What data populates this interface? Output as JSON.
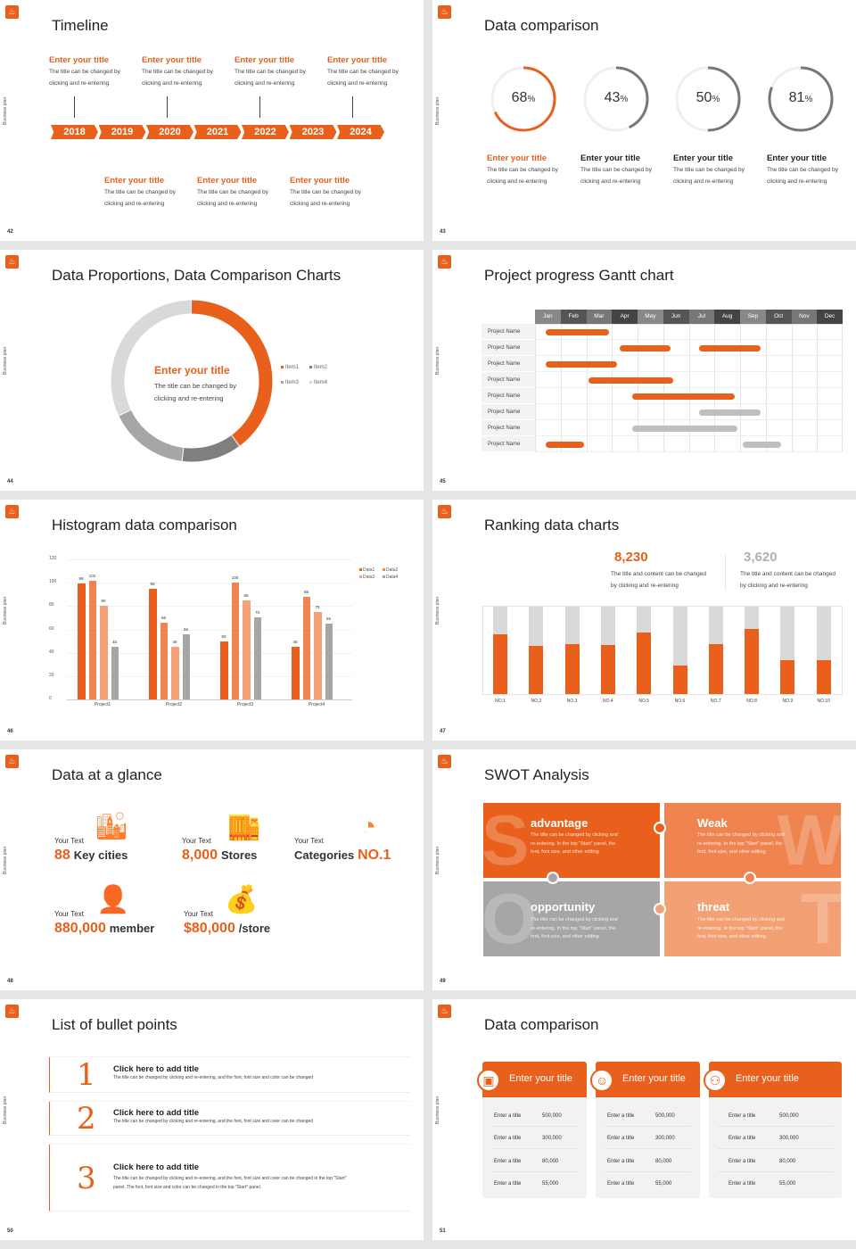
{
  "common": {
    "side_label": "Business plan",
    "logo_icon": "lantern-icon",
    "colors": {
      "orange": "#e8601c",
      "orange2": "#ee7f45",
      "orange3": "#f3a27a",
      "gray": "#a5a5a5",
      "lightgray": "#d9d9d9"
    }
  },
  "slides": [
    {
      "page": "42",
      "title": "Timeline",
      "years": [
        "2018",
        "2019",
        "2020",
        "2021",
        "2022",
        "2023",
        "2024"
      ],
      "top_items": [
        {
          "title": "Enter your title",
          "desc1": "The title can be changed by",
          "desc2": "clicking and re-entering"
        },
        {
          "title": "Enter your title",
          "desc1": "The title can be changed by",
          "desc2": "clicking and re-entering"
        },
        {
          "title": "Enter your title",
          "desc1": "The title can be changed by",
          "desc2": "clicking and re-entering"
        },
        {
          "title": "Enter your title",
          "desc1": "The title can be changed by",
          "desc2": "clicking and re-entering"
        }
      ],
      "bottom_items": [
        {
          "title": "Enter your title",
          "desc1": "The title can be changed by",
          "desc2": "clicking and re-entering"
        },
        {
          "title": "Enter your title",
          "desc1": "The title can be changed by",
          "desc2": "clicking and re-entering"
        },
        {
          "title": "Enter your title",
          "desc1": "The title can be changed by",
          "desc2": "clicking and re-entering"
        }
      ]
    },
    {
      "page": "43",
      "title": "Data comparison",
      "rings": [
        {
          "value": 68,
          "unit": "%",
          "title": "Enter your title",
          "desc1": "The title can be changed by",
          "desc2": "clicking and re-entering",
          "highlight": true
        },
        {
          "value": 43,
          "unit": "%",
          "title": "Enter your title",
          "desc1": "The title can be changed by",
          "desc2": "clicking and re-entering",
          "highlight": false
        },
        {
          "value": 50,
          "unit": "%",
          "title": "Enter your title",
          "desc1": "The title can be changed by",
          "desc2": "clicking and re-entering",
          "highlight": false
        },
        {
          "value": 81,
          "unit": "%",
          "title": "Enter your title",
          "desc1": "The title can be changed by",
          "desc2": "clicking and re-entering",
          "highlight": false
        }
      ]
    },
    {
      "page": "44",
      "title": "Data Proportions, Data Comparison Charts",
      "center": {
        "title": "Enter your title",
        "desc1": "The title can be changed by",
        "desc2": "clicking and re-entering"
      }
    },
    {
      "page": "45",
      "title": "Project progress Gantt chart"
    },
    {
      "page": "46",
      "title": "Histogram data comparison"
    },
    {
      "page": "47",
      "title": "Ranking data charts",
      "stats": [
        {
          "value": "8,230",
          "desc1": "The title and content can be changed",
          "desc2": "by clicking and re-entering",
          "color": "#e8601c"
        },
        {
          "value": "3,620",
          "desc1": "The title and content can be changed",
          "desc2": "by clicking and re-entering",
          "color": "#b0b0b0"
        }
      ]
    },
    {
      "page": "48",
      "title": "Data at a glance",
      "items": [
        {
          "label": "Your Text",
          "num": "88",
          "text": "Key cities",
          "icon": "city-buildings-icon"
        },
        {
          "label": "Your Text",
          "num": "8,000",
          "text": "Stores",
          "icon": "store-icon"
        },
        {
          "label": "Your Text",
          "num": "NO.1",
          "text": "Categories",
          "icon": "pie-chart-icon"
        },
        {
          "label": "Your Text",
          "num": "880,000",
          "text": "member",
          "icon": "user-add-icon"
        },
        {
          "label": "Your Text",
          "num": "$80,000",
          "text": "/store",
          "icon": "coins-icon"
        }
      ]
    },
    {
      "page": "49",
      "title": "SWOT Analysis",
      "quadrants": [
        {
          "letter": "S",
          "title": "advantage",
          "desc1": "The title can be changed by clicking and",
          "desc2": "re-entering. In the top \"Start\" panel, the",
          "desc3": "font, font size, and other editing",
          "color": "#e8601c"
        },
        {
          "letter": "W",
          "title": "Weak",
          "desc1": "The title can be changed by clicking and",
          "desc2": "re-entering. In the top \"Start\" panel, the",
          "desc3": "font, font size, and other editing",
          "color": "#ef8450"
        },
        {
          "letter": "O",
          "title": "opportunity",
          "desc1": "The title can be changed by clicking and",
          "desc2": "re-entering. In the top \"Start\" panel, the",
          "desc3": "font, font size, and other editing",
          "color": "#a6a6a6"
        },
        {
          "letter": "T",
          "title": "threat",
          "desc1": "The title can be changed by clicking and",
          "desc2": "re-entering. In the top \"Start\" panel, the",
          "desc3": "font, font size, and other editing",
          "color": "#f3a074"
        }
      ]
    },
    {
      "page": "50",
      "title": "List of bullet points",
      "bullets": [
        {
          "num": "1",
          "title": "Click here to add title",
          "desc1": "The title can be changed by clicking and re-entering, and the font, font size and color can be changed",
          "desc2": ""
        },
        {
          "num": "2",
          "title": "Click here to add title",
          "desc1": "The title can be changed by clicking and re-entering, and the font, font size and color can be changed",
          "desc2": ""
        },
        {
          "num": "3",
          "title": "Click here to add title",
          "desc1": "The title can be changed by clicking and re-entering, and the font, font size and color can be changed in the top \"Start\"",
          "desc2": "panel. The font, font size and color can be changed in the top \"Start\" panel."
        }
      ]
    },
    {
      "page": "51",
      "title": "Data comparison",
      "cards": [
        {
          "title": "Enter your title",
          "icon": "tablet-user-icon",
          "rows": [
            {
              "label": "Enter a title",
              "value": "500,000"
            },
            {
              "label": "Enter a title",
              "value": "300,000"
            },
            {
              "label": "Enter a title",
              "value": "80,000"
            },
            {
              "label": "Enter a title",
              "value": "55,000"
            }
          ]
        },
        {
          "title": "Enter your title",
          "icon": "support-agent-icon",
          "rows": [
            {
              "label": "Enter a title",
              "value": "500,000"
            },
            {
              "label": "Enter a title",
              "value": "300,000"
            },
            {
              "label": "Enter a title",
              "value": "80,000"
            },
            {
              "label": "Enter a title",
              "value": "55,000"
            }
          ]
        },
        {
          "title": "Enter your title",
          "icon": "team-icon",
          "rows": [
            {
              "label": "Enter a title",
              "value": "500,000"
            },
            {
              "label": "Enter a title",
              "value": "300,000"
            },
            {
              "label": "Enter a title",
              "value": "80,000"
            },
            {
              "label": "Enter a title",
              "value": "55,000"
            }
          ]
        }
      ]
    }
  ],
  "chart_data": [
    {
      "type": "pie",
      "variant": "donut",
      "categories": [
        "Item1",
        "Item2",
        "Item3",
        "Item4"
      ],
      "values": [
        40,
        12,
        16,
        32
      ],
      "colors": [
        "#e8601c",
        "#7f7f7f",
        "#a6a6a6",
        "#d9d9d9"
      ],
      "legend": "right"
    },
    {
      "type": "bar",
      "variant": "gantt",
      "categories": [
        "Jan",
        "Feb",
        "Mar",
        "Apr",
        "May",
        "Jun",
        "Jul",
        "Aug",
        "Sep",
        "Oct",
        "Nov",
        "Dec"
      ],
      "rows": [
        {
          "name": "Project Name",
          "bars": [
            {
              "start": 0.4,
              "end": 2.9,
              "color": "orange"
            }
          ]
        },
        {
          "name": "Project Name",
          "bars": [
            {
              "start": 3.3,
              "end": 5.3,
              "color": "orange"
            },
            {
              "start": 6.4,
              "end": 8.8,
              "color": "orange"
            }
          ]
        },
        {
          "name": "Project Name",
          "bars": [
            {
              "start": 0.4,
              "end": 3.2,
              "color": "orange"
            }
          ]
        },
        {
          "name": "Project Name",
          "bars": [
            {
              "start": 2.1,
              "end": 5.4,
              "color": "orange"
            }
          ]
        },
        {
          "name": "Project Name",
          "bars": [
            {
              "start": 3.8,
              "end": 7.8,
              "color": "orange"
            }
          ]
        },
        {
          "name": "Project Name",
          "bars": [
            {
              "start": 6.4,
              "end": 8.8,
              "color": "gray"
            }
          ]
        },
        {
          "name": "Project Name",
          "bars": [
            {
              "start": 3.8,
              "end": 7.9,
              "color": "gray"
            }
          ]
        },
        {
          "name": "Project Name",
          "bars": [
            {
              "start": 0.4,
              "end": 1.9,
              "color": "orange"
            },
            {
              "start": 8.1,
              "end": 9.6,
              "color": "gray"
            }
          ]
        }
      ]
    },
    {
      "type": "bar",
      "categories": [
        "Project1",
        "Project2",
        "Project3",
        "Project4"
      ],
      "series": [
        {
          "name": "Data1",
          "values": [
            99,
            95,
            50,
            45
          ],
          "color": "#e8601c"
        },
        {
          "name": "Data2",
          "values": [
            102,
            66,
            100,
            88
          ],
          "color": "#ef8450"
        },
        {
          "name": "Data3",
          "values": [
            80,
            45,
            85,
            75
          ],
          "color": "#f3a27a"
        },
        {
          "name": "Data4",
          "values": [
            45,
            56,
            70,
            65
          ],
          "color": "#a6a6a6"
        }
      ],
      "yticks": [
        "0",
        "20",
        "40",
        "60",
        "80",
        "100",
        "120"
      ],
      "ylim": [
        0,
        120
      ],
      "legend": "top-right",
      "grid": true
    },
    {
      "type": "bar",
      "variant": "stacked-percent",
      "categories": [
        "NO.1",
        "NO.2",
        "NO.3",
        "NO.4",
        "NO.5",
        "NO.6",
        "NO.7",
        "NO.8",
        "NO.9",
        "NO.10"
      ],
      "values": [
        0.68,
        0.55,
        0.57,
        0.56,
        0.7,
        0.33,
        0.57,
        0.75,
        0.39,
        0.39
      ],
      "ylim": [
        0,
        1
      ]
    }
  ]
}
